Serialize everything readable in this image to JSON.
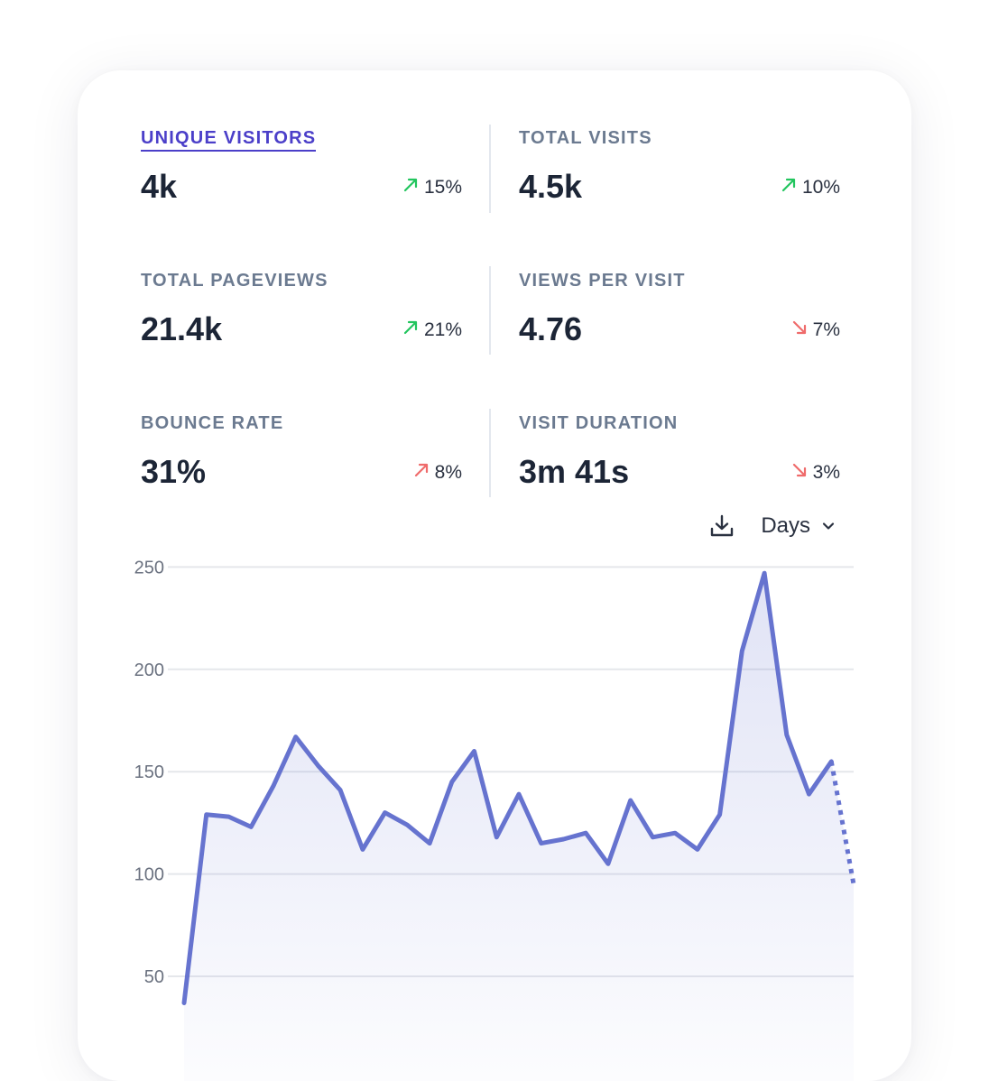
{
  "stats": [
    {
      "label": "UNIQUE VISITORS",
      "value": "4k",
      "change": "15%",
      "trend": "up",
      "sentiment": "good",
      "active": true
    },
    {
      "label": "TOTAL VISITS",
      "value": "4.5k",
      "change": "10%",
      "trend": "up",
      "sentiment": "good",
      "active": false
    },
    {
      "label": "TOTAL PAGEVIEWS",
      "value": "21.4k",
      "change": "21%",
      "trend": "up",
      "sentiment": "good",
      "active": false
    },
    {
      "label": "VIEWS PER VISIT",
      "value": "4.76",
      "change": "7%",
      "trend": "down",
      "sentiment": "bad",
      "active": false
    },
    {
      "label": "BOUNCE RATE",
      "value": "31%",
      "change": "8%",
      "trend": "up",
      "sentiment": "bad",
      "active": false
    },
    {
      "label": "VISIT DURATION",
      "value": "3m 41s",
      "change": "3%",
      "trend": "down",
      "sentiment": "bad",
      "active": false
    }
  ],
  "controls": {
    "download_icon": "download-icon",
    "interval_label": "Days",
    "interval_icon": "chevron-down-icon"
  },
  "colors": {
    "accent": "#4b3fc9",
    "line": "#6673cf",
    "good": "#22c55e",
    "bad": "#ef6b6b"
  },
  "chart_data": {
    "type": "area",
    "ylabel": "",
    "xlabel": "",
    "y_ticks": [
      50,
      100,
      150,
      200,
      250
    ],
    "ylim": [
      30,
      250
    ],
    "grid": true,
    "series": [
      {
        "values": [
          37,
          129,
          128,
          123,
          143,
          167,
          153,
          141,
          112,
          130,
          124,
          115,
          145,
          160,
          118,
          139,
          115,
          117,
          120,
          105,
          136,
          118,
          120,
          112,
          129,
          209,
          247,
          168,
          139,
          155,
          95
        ],
        "last_segment_dashed": true
      }
    ]
  }
}
